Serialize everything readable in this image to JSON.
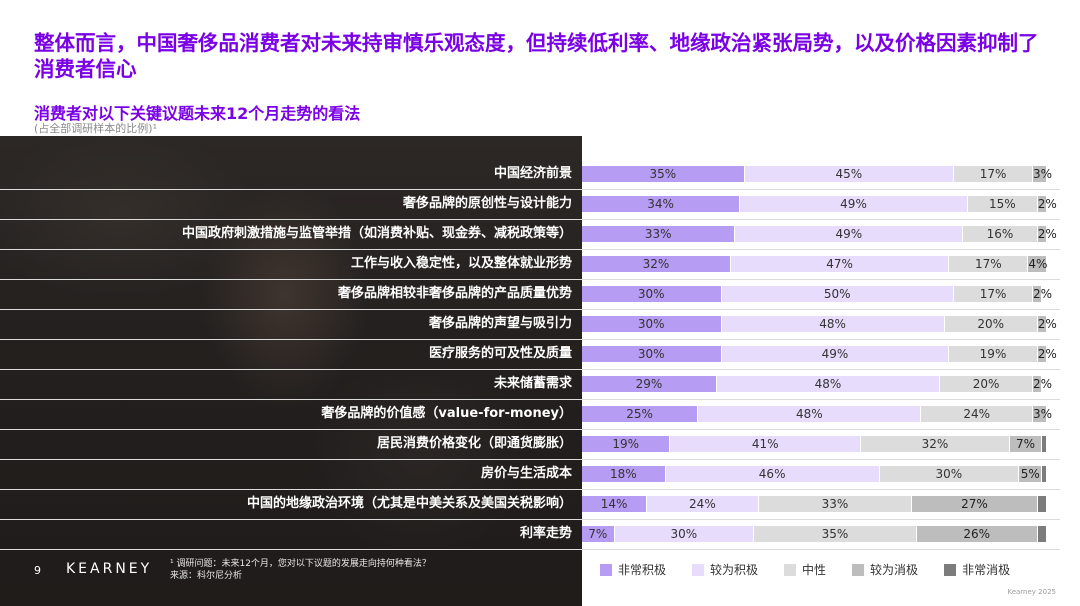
{
  "header": {
    "title": "整体而言，中国奢侈品消费者对未来持审慎乐观态度，但持续低利率、地缘政治紧张局势，以及价格因素抑制了消费者信心",
    "subtitle": "消费者对以下关键议题未来12个月走势的看法",
    "note": "(占全部调研样本的比例)¹"
  },
  "footer": {
    "page_number": "9",
    "logo": "KEARNEY",
    "footnote_line1": "¹ 调研问题：未来12个月，您对以下议题的发展走向持何种看法？",
    "footnote_line2": "来源：科尔尼分析",
    "copyright": "Kearney 2025"
  },
  "colors": {
    "very_positive": "#B79CF3",
    "positive": "#E8DCFC",
    "neutral": "#DCDCDC",
    "negative": "#BDBDBD",
    "very_negative": "#7C7C7C",
    "title": "#7A00E6"
  },
  "chart_data": {
    "type": "bar",
    "orientation": "horizontal",
    "stacked": true,
    "categories": [
      "中国经济前景",
      "奢侈品牌的原创性与设计能力",
      "中国政府刺激措施与监管举措（如消费补贴、现金券、减税政策等）",
      "工作与收入稳定性，以及整体就业形势",
      "奢侈品牌相较非奢侈品牌的产品质量优势",
      "奢侈品牌的声望与吸引力",
      "医疗服务的可及性及质量",
      "未来储蓄需求",
      "奢侈品牌的价值感（value-for-money）",
      "居民消费价格变化（即通货膨胀）",
      "房价与生活成本",
      "中国的地缘政治环境（尤其是中美关系及美国关税影响）",
      "利率走势"
    ],
    "series": [
      {
        "name": "非常积极",
        "values": [
          35,
          34,
          33,
          32,
          30,
          30,
          30,
          29,
          25,
          19,
          18,
          14,
          7
        ]
      },
      {
        "name": "较为积极",
        "values": [
          45,
          49,
          49,
          47,
          50,
          48,
          49,
          48,
          48,
          41,
          46,
          24,
          30
        ]
      },
      {
        "name": "中性",
        "values": [
          17,
          15,
          16,
          17,
          17,
          20,
          19,
          20,
          24,
          32,
          30,
          33,
          35
        ]
      },
      {
        "name": "较为消极",
        "values": [
          3,
          2,
          2,
          4,
          2,
          2,
          2,
          2,
          3,
          7,
          5,
          27,
          26
        ]
      },
      {
        "name": "非常消极",
        "values": [
          0,
          0,
          0,
          0,
          0,
          0,
          0,
          0,
          0,
          1,
          1,
          2,
          2
        ]
      }
    ],
    "value_labels": [
      [
        "35%",
        "45%",
        "17%",
        "3%",
        ""
      ],
      [
        "34%",
        "49%",
        "15%",
        "2%",
        ""
      ],
      [
        "33%",
        "49%",
        "16%",
        "2%",
        ""
      ],
      [
        "32%",
        "47%",
        "17%",
        "4%",
        ""
      ],
      [
        "30%",
        "50%",
        "17%",
        "2%",
        ""
      ],
      [
        "30%",
        "48%",
        "20%",
        "2%",
        ""
      ],
      [
        "30%",
        "49%",
        "19%",
        "2%",
        ""
      ],
      [
        "29%",
        "48%",
        "20%",
        "2%",
        ""
      ],
      [
        "25%",
        "48%",
        "24%",
        "3%",
        ""
      ],
      [
        "19%",
        "41%",
        "32%",
        "7%",
        ""
      ],
      [
        "18%",
        "46%",
        "30%",
        "5%",
        ""
      ],
      [
        "14%",
        "24%",
        "33%",
        "27%",
        ""
      ],
      [
        "7%",
        "30%",
        "35%",
        "26%",
        ""
      ]
    ],
    "xlim": [
      0,
      100
    ],
    "legend_position": "bottom"
  }
}
